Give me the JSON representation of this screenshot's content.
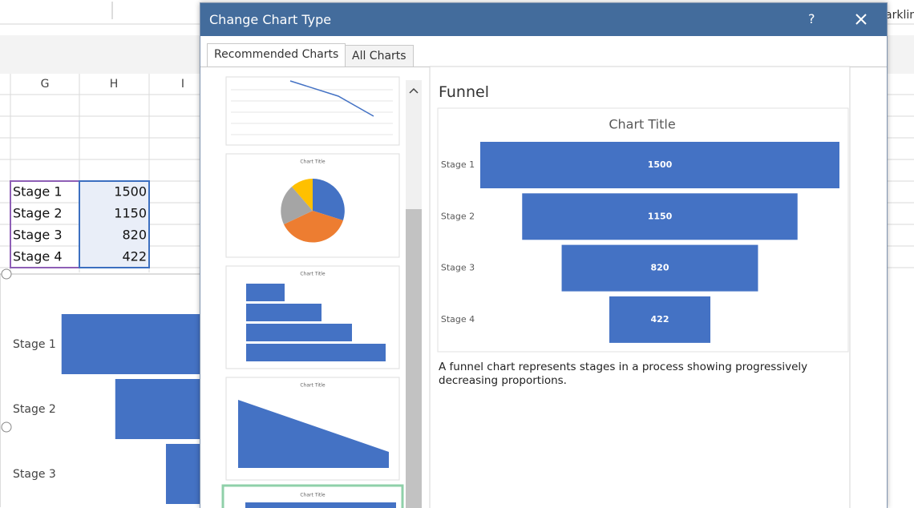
{
  "window": {
    "ribbon_fragment": "arklin"
  },
  "sheet": {
    "columns": [
      "G",
      "H",
      "I"
    ],
    "rows": [
      [
        "Stage 1",
        1500
      ],
      [
        "Stage 2",
        1150
      ],
      [
        "Stage 3",
        820
      ],
      [
        "Stage 4",
        422
      ]
    ]
  },
  "sheet_chart": {
    "categories": [
      "Stage 1",
      "Stage 2",
      "Stage 3"
    ]
  },
  "dialog": {
    "title": "Change Chart Type",
    "help": "?",
    "tabs": [
      "Recommended Charts",
      "All Charts"
    ],
    "thumbnails": [
      "Chart Title",
      "Chart Title",
      "Chart Title",
      "Chart Title"
    ],
    "preview": {
      "heading": "Funnel",
      "chart": {
        "type": "funnel",
        "title": "Chart Title",
        "categories": [
          "Stage 1",
          "Stage 2",
          "Stage 3",
          "Stage 4"
        ],
        "values": [
          1500,
          1150,
          820,
          422
        ],
        "color": "#4472c4"
      },
      "description": "A funnel chart represents stages in a process showing progressively decreasing proportions."
    }
  }
}
